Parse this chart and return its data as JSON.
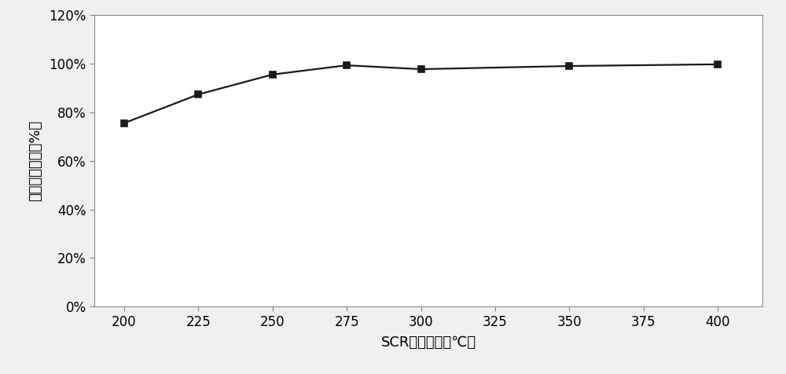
{
  "x": [
    200,
    225,
    250,
    275,
    300,
    350,
    400
  ],
  "y": [
    0.755,
    0.873,
    0.955,
    0.993,
    0.977,
    0.99,
    0.997
  ],
  "xlabel": "SCR载体温度（℃）",
  "ylabel": "极限转化效率（%）",
  "xlim": [
    190,
    415
  ],
  "ylim": [
    0.0,
    1.2
  ],
  "xticks": [
    200,
    225,
    250,
    275,
    300,
    325,
    350,
    375,
    400
  ],
  "yticks": [
    0.0,
    0.2,
    0.4,
    0.6,
    0.8,
    1.0,
    1.2
  ],
  "line_color": "#1a1a1a",
  "marker": "s",
  "marker_size": 6,
  "marker_color": "#1a1a1a",
  "line_width": 1.6,
  "background_color": "#f0f0f0",
  "plot_bg_color": "#ffffff",
  "border_color": "#888888",
  "tick_label_fontsize": 12,
  "axis_label_fontsize": 13,
  "figsize": [
    10.0,
    4.76
  ],
  "dpi": 100
}
